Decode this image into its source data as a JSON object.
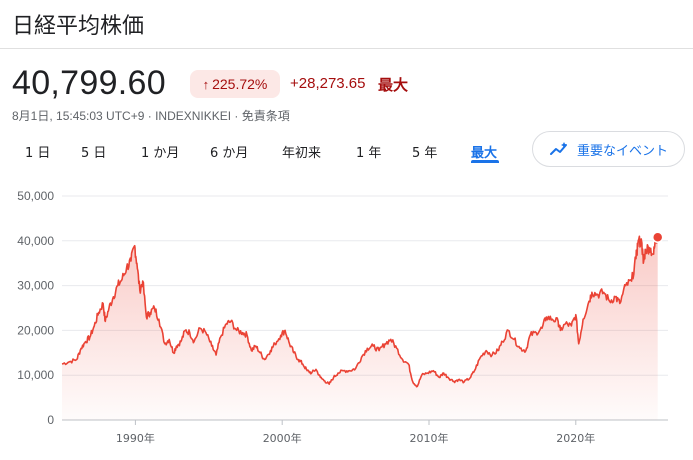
{
  "header": {
    "title": "日経平均株価"
  },
  "quote": {
    "price": "40,799.60",
    "change_pct": "225.72%",
    "change_arrow_icon": "arrow-up-icon",
    "change_abs": "+28,273.65",
    "change_range": "最大",
    "meta": "8月1日, 15:45:03 UTC+9 · INDEXNIKKEI · 免責条項"
  },
  "tabs": [
    {
      "label": "1 日"
    },
    {
      "label": "5 日"
    },
    {
      "label": "1 か月"
    },
    {
      "label": "6 か月"
    },
    {
      "label": "年初来"
    },
    {
      "label": "1 年"
    },
    {
      "label": "5 年"
    },
    {
      "label": "最大",
      "active": true
    }
  ],
  "events_button": {
    "label": "重要なイベント",
    "icon": "trend-sparkle-icon"
  },
  "colors": {
    "line": "#ea4335",
    "negative": "#a50e0e",
    "accent": "#1a73e8"
  },
  "chart_data": {
    "type": "area",
    "grid": true,
    "ylim": [
      0,
      50000
    ],
    "xlim": [
      1985.0,
      2025.6
    ],
    "y_ticks": [
      0,
      10000,
      20000,
      30000,
      40000,
      50000
    ],
    "y_tick_labels": [
      "0",
      "10,000",
      "20,000",
      "30,000",
      "40,000",
      "50,000"
    ],
    "x_ticks": [
      1990,
      2000,
      2010,
      2020
    ],
    "x_tick_labels": [
      "1990年",
      "2000年",
      "2010年",
      "2020年"
    ],
    "series": [
      {
        "x": [
          1985.0,
          1985.5,
          1986.0,
          1986.3,
          1986.6,
          1986.9,
          1987.2,
          1987.5,
          1987.8,
          1987.95,
          1988.2,
          1988.5,
          1988.8,
          1989.1,
          1989.4,
          1989.7,
          1989.95,
          1990.1,
          1990.3,
          1990.5,
          1990.75,
          1991.0,
          1991.3,
          1991.6,
          1992.0,
          1992.3,
          1992.6,
          1992.8,
          1993.1,
          1993.4,
          1993.7,
          1994.0,
          1994.4,
          1994.8,
          1995.2,
          1995.5,
          1995.8,
          1996.2,
          1996.5,
          1996.9,
          1997.3,
          1997.6,
          1997.9,
          1998.2,
          1998.5,
          1998.8,
          1999.2,
          1999.5,
          1999.9,
          2000.2,
          2000.5,
          2000.8,
          2001.1,
          2001.4,
          2001.7,
          2002.0,
          2002.3,
          2002.6,
          2002.9,
          2003.2,
          2003.5,
          2003.8,
          2004.2,
          2004.6,
          2005.0,
          2005.4,
          2005.8,
          2006.2,
          2006.6,
          2007.0,
          2007.4,
          2007.8,
          2008.2,
          2008.6,
          2008.9,
          2009.2,
          2009.5,
          2009.9,
          2010.3,
          2010.7,
          2011.0,
          2011.3,
          2011.7,
          2012.0,
          2012.4,
          2012.8,
          2013.1,
          2013.5,
          2013.9,
          2014.3,
          2014.7,
          2015.0,
          2015.4,
          2015.8,
          2016.2,
          2016.6,
          2016.9,
          2017.3,
          2017.7,
          2018.0,
          2018.4,
          2018.8,
          2018.95,
          2019.3,
          2019.7,
          2020.0,
          2020.2,
          2020.5,
          2020.9,
          2021.1,
          2021.5,
          2021.9,
          2022.3,
          2022.7,
          2023.0,
          2023.4,
          2023.8,
          2024.1,
          2024.25,
          2024.5,
          2024.6,
          2024.75,
          2025.0,
          2025.3,
          2025.45,
          2025.58
        ],
        "y": [
          12500,
          13000,
          13500,
          16000,
          17500,
          18500,
          21000,
          24000,
          26000,
          22000,
          25000,
          27500,
          30000,
          31500,
          34000,
          35500,
          38900,
          35000,
          29000,
          31000,
          23000,
          24000,
          25000,
          22500,
          17000,
          18000,
          15000,
          16500,
          17500,
          20000,
          19500,
          17500,
          20500,
          19500,
          16500,
          14500,
          18500,
          21500,
          22000,
          20000,
          19500,
          19000,
          15500,
          16500,
          15000,
          13500,
          15500,
          17000,
          18900,
          20000,
          17000,
          15000,
          13500,
          12500,
          11000,
          10500,
          11300,
          9500,
          8700,
          8000,
          9500,
          10500,
          11000,
          11000,
          11500,
          14000,
          16000,
          16500,
          15500,
          17000,
          18000,
          16000,
          13500,
          12500,
          8500,
          7500,
          10000,
          10500,
          11000,
          9500,
          10500,
          9500,
          8600,
          9000,
          8500,
          9400,
          11000,
          14000,
          15500,
          14500,
          15500,
          17500,
          20000,
          18000,
          16000,
          15500,
          19000,
          19500,
          20500,
          23000,
          22500,
          22000,
          20000,
          21500,
          21000,
          23500,
          17000,
          22500,
          26500,
          28500,
          28000,
          28500,
          26500,
          27500,
          26000,
          30000,
          31000,
          36000,
          40000,
          39500,
          35000,
          38000,
          38500,
          37000,
          40500,
          40800
        ]
      }
    ]
  }
}
